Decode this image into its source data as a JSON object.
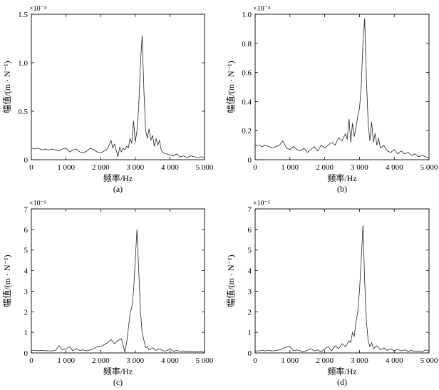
{
  "chart_data": [
    {
      "type": "line",
      "panel_label": "(a)",
      "xlabel": "频率/Hz",
      "ylabel": "幅值/(m · N⁻¹)",
      "y_multiplier": "×10⁻⁴",
      "xlim": [
        0,
        5000
      ],
      "ylim": [
        0,
        1.5
      ],
      "xticks": [
        0,
        1000,
        2000,
        3000,
        4000,
        5000
      ],
      "xtick_labels": [
        "0",
        "1 000",
        "2 000",
        "3 000",
        "4 000",
        "5 000"
      ],
      "yticks": [
        0,
        0.5,
        1.0,
        1.5
      ],
      "ytick_labels": [
        "0",
        "0.5",
        "1.0",
        "1.5"
      ],
      "x": [
        0,
        100,
        200,
        300,
        400,
        500,
        600,
        700,
        800,
        900,
        1000,
        1100,
        1200,
        1300,
        1400,
        1500,
        1600,
        1700,
        1800,
        1900,
        2000,
        2100,
        2200,
        2300,
        2350,
        2400,
        2450,
        2500,
        2550,
        2600,
        2650,
        2700,
        2750,
        2800,
        2850,
        2900,
        2950,
        3000,
        3050,
        3100,
        3150,
        3200,
        3250,
        3300,
        3350,
        3400,
        3450,
        3500,
        3550,
        3600,
        3650,
        3700,
        3750,
        3800,
        3900,
        4000,
        4100,
        4200,
        4300,
        4400,
        4500,
        4600,
        4700,
        4800,
        4900,
        5000
      ],
      "y": [
        0.12,
        0.11,
        0.12,
        0.1,
        0.11,
        0.1,
        0.11,
        0.1,
        0.09,
        0.11,
        0.12,
        0.08,
        0.1,
        0.11,
        0.08,
        0.07,
        0.09,
        0.12,
        0.1,
        0.08,
        0.07,
        0.09,
        0.11,
        0.2,
        0.12,
        0.16,
        0.1,
        0.03,
        0.13,
        0.08,
        0.12,
        0.1,
        0.14,
        0.12,
        0.22,
        0.17,
        0.4,
        0.18,
        0.3,
        0.55,
        1.0,
        1.28,
        0.7,
        0.3,
        0.22,
        0.32,
        0.2,
        0.25,
        0.14,
        0.22,
        0.15,
        0.2,
        0.1,
        0.07,
        0.06,
        0.05,
        0.04,
        0.06,
        0.03,
        0.04,
        0.02,
        0.04,
        0.03,
        0.02,
        0.03,
        0.02
      ]
    },
    {
      "type": "line",
      "panel_label": "(b)",
      "xlabel": "频率/Hz",
      "ylabel": "幅值/(m · N⁻¹)",
      "y_multiplier": "×10⁻⁴",
      "xlim": [
        0,
        5000
      ],
      "ylim": [
        0,
        1.0
      ],
      "xticks": [
        0,
        1000,
        2000,
        3000,
        4000,
        5000
      ],
      "xtick_labels": [
        "0",
        "1 000",
        "2 000",
        "3 000",
        "4 000",
        "5 000"
      ],
      "yticks": [
        0,
        0.2,
        0.4,
        0.6,
        0.8,
        1.0
      ],
      "ytick_labels": [
        "0",
        "0.2",
        "0.4",
        "0.6",
        "0.8",
        "1.0"
      ],
      "x": [
        0,
        100,
        200,
        300,
        400,
        500,
        600,
        700,
        800,
        900,
        1000,
        1100,
        1200,
        1300,
        1400,
        1500,
        1600,
        1700,
        1800,
        1900,
        2000,
        2100,
        2200,
        2300,
        2400,
        2500,
        2600,
        2650,
        2700,
        2750,
        2800,
        2850,
        2900,
        2950,
        3000,
        3050,
        3100,
        3150,
        3200,
        3250,
        3300,
        3350,
        3400,
        3450,
        3500,
        3550,
        3600,
        3700,
        3800,
        3900,
        4000,
        4100,
        4200,
        4300,
        4400,
        4500,
        4600,
        4700,
        4800,
        4900,
        5000
      ],
      "y": [
        0.1,
        0.1,
        0.09,
        0.1,
        0.09,
        0.08,
        0.09,
        0.1,
        0.13,
        0.08,
        0.07,
        0.09,
        0.07,
        0.06,
        0.08,
        0.05,
        0.07,
        0.09,
        0.06,
        0.1,
        0.08,
        0.1,
        0.12,
        0.1,
        0.15,
        0.13,
        0.18,
        0.14,
        0.28,
        0.12,
        0.25,
        0.16,
        0.22,
        0.3,
        0.35,
        0.5,
        0.8,
        0.97,
        0.55,
        0.25,
        0.13,
        0.26,
        0.12,
        0.18,
        0.1,
        0.15,
        0.08,
        0.1,
        0.06,
        0.05,
        0.07,
        0.04,
        0.06,
        0.04,
        0.05,
        0.03,
        0.04,
        0.02,
        0.03,
        0.02,
        0.01
      ]
    },
    {
      "type": "line",
      "panel_label": "(c)",
      "xlabel": "频率/Hz",
      "ylabel": "幅值/(m · N⁻¹)",
      "y_multiplier": "×10⁻⁵",
      "xlim": [
        0,
        5000
      ],
      "ylim": [
        0,
        7
      ],
      "xticks": [
        0,
        1000,
        2000,
        3000,
        4000,
        5000
      ],
      "xtick_labels": [
        "0",
        "1 000",
        "2 000",
        "3 000",
        "4 000",
        "5 000"
      ],
      "yticks": [
        0,
        1,
        2,
        3,
        4,
        5,
        6,
        7
      ],
      "ytick_labels": [
        "0",
        "1",
        "2",
        "3",
        "4",
        "5",
        "6",
        "7"
      ],
      "x": [
        0,
        100,
        200,
        300,
        400,
        500,
        600,
        700,
        800,
        900,
        1000,
        1100,
        1200,
        1300,
        1400,
        1500,
        1600,
        1700,
        1800,
        1900,
        2000,
        2100,
        2200,
        2300,
        2400,
        2500,
        2600,
        2700,
        2750,
        2800,
        2850,
        2900,
        2950,
        3000,
        3050,
        3100,
        3150,
        3200,
        3250,
        3300,
        3350,
        3400,
        3500,
        3600,
        3700,
        3800,
        3900,
        4000,
        4100,
        4200,
        4300,
        4400,
        4500,
        4600,
        4700,
        4800,
        4900,
        5000
      ],
      "y": [
        0.12,
        0.12,
        0.11,
        0.12,
        0.11,
        0.1,
        0.1,
        0.12,
        0.35,
        0.15,
        0.2,
        0.3,
        0.1,
        0.22,
        0.12,
        0.15,
        0.1,
        0.15,
        0.2,
        0.3,
        0.3,
        0.4,
        0.5,
        0.65,
        0.45,
        0.6,
        0.7,
        0.05,
        0.5,
        1.2,
        1.9,
        2.2,
        3.0,
        4.5,
        6.0,
        4.0,
        2.0,
        1.0,
        0.6,
        0.25,
        0.3,
        0.15,
        0.25,
        0.12,
        0.2,
        0.1,
        0.1,
        0.2,
        0.08,
        0.12,
        0.07,
        0.1,
        0.06,
        0.08,
        0.06,
        0.05,
        0.08,
        0.03
      ]
    },
    {
      "type": "line",
      "panel_label": "(d)",
      "xlabel": "频率/Hz",
      "ylabel": "幅值/(m · N⁻¹)",
      "y_multiplier": "×10⁻⁵",
      "xlim": [
        0,
        5000
      ],
      "ylim": [
        0,
        7
      ],
      "xticks": [
        0,
        1000,
        2000,
        3000,
        4000,
        5000
      ],
      "xtick_labels": [
        "0",
        "1 000",
        "2 000",
        "3 000",
        "4 000",
        "5 000"
      ],
      "yticks": [
        0,
        1,
        2,
        3,
        4,
        5,
        6,
        7
      ],
      "ytick_labels": [
        "0",
        "1",
        "2",
        "3",
        "4",
        "5",
        "6",
        "7"
      ],
      "x": [
        0,
        100,
        200,
        300,
        400,
        500,
        600,
        700,
        800,
        900,
        1000,
        1100,
        1200,
        1300,
        1400,
        1500,
        1600,
        1700,
        1800,
        1900,
        2000,
        2100,
        2200,
        2300,
        2400,
        2500,
        2600,
        2700,
        2750,
        2800,
        2850,
        2900,
        2950,
        3000,
        3050,
        3100,
        3150,
        3200,
        3250,
        3300,
        3350,
        3400,
        3500,
        3600,
        3700,
        3800,
        3900,
        4000,
        4100,
        4200,
        4300,
        4400,
        4500,
        4600,
        4700,
        4800,
        4900,
        5000
      ],
      "y": [
        0.1,
        0.1,
        0.12,
        0.1,
        0.12,
        0.1,
        0.12,
        0.15,
        0.2,
        0.28,
        0.3,
        0.1,
        0.15,
        0.1,
        0.05,
        0.12,
        0.2,
        0.1,
        0.15,
        0.05,
        0.2,
        0.3,
        0.1,
        0.35,
        0.2,
        0.45,
        0.3,
        0.6,
        0.5,
        1.0,
        0.8,
        1.5,
        2.0,
        3.0,
        4.5,
        6.2,
        3.5,
        1.5,
        0.6,
        0.3,
        0.5,
        0.2,
        0.35,
        0.15,
        0.25,
        0.12,
        0.2,
        0.1,
        0.18,
        0.1,
        0.15,
        0.08,
        0.12,
        0.06,
        0.1,
        0.05,
        0.15,
        0.1
      ]
    }
  ]
}
